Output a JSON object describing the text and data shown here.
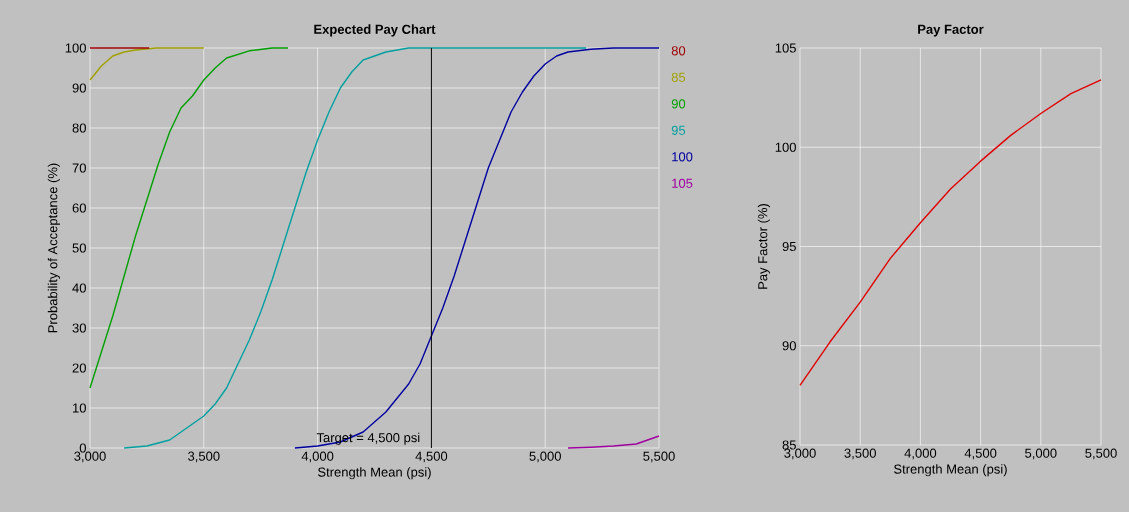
{
  "chart_data": [
    {
      "type": "line",
      "title": "Expected Pay Chart",
      "xlabel": "Strength Mean (psi)",
      "ylabel": "Probability of Acceptance (%)",
      "xlim": [
        3000,
        5500
      ],
      "ylim": [
        0,
        100
      ],
      "xticks": [
        {
          "value": 3000,
          "label": "3,000"
        },
        {
          "value": 3500,
          "label": "3,500"
        },
        {
          "value": 4000,
          "label": "4,000"
        },
        {
          "value": 4500,
          "label": "4,500"
        },
        {
          "value": 5000,
          "label": "5,000"
        },
        {
          "value": 5500,
          "label": "5,500"
        }
      ],
      "yticks": [
        0,
        10,
        20,
        30,
        40,
        50,
        60,
        70,
        80,
        90,
        100
      ],
      "grid": true,
      "legend": "right",
      "ref_lines": [
        {
          "axis": "x",
          "value": 4500,
          "label": "Target = 4,500 psi",
          "color": "#000000"
        }
      ],
      "series": [
        {
          "name": "80",
          "color": "#a00000",
          "x": [
            3000,
            3130,
            3260
          ],
          "values": [
            100,
            100,
            100
          ]
        },
        {
          "name": "85",
          "color": "#a0a000",
          "x": [
            3000,
            3050,
            3100,
            3150,
            3200,
            3290,
            3400,
            3500
          ],
          "values": [
            92,
            95.5,
            98,
            99,
            99.5,
            100,
            100,
            100
          ]
        },
        {
          "name": "90",
          "color": "#00a000",
          "x": [
            3000,
            3050,
            3100,
            3150,
            3200,
            3250,
            3300,
            3350,
            3400,
            3450,
            3500,
            3550,
            3600,
            3700,
            3800,
            3870
          ],
          "values": [
            15,
            24,
            33,
            43,
            53,
            62,
            71,
            79,
            85,
            88,
            92,
            95,
            97.5,
            99.3,
            100,
            100
          ]
        },
        {
          "name": "95",
          "color": "#00a0a0",
          "x": [
            3150,
            3250,
            3350,
            3450,
            3500,
            3550,
            3600,
            3650,
            3700,
            3750,
            3800,
            3850,
            3900,
            3950,
            4000,
            4050,
            4100,
            4150,
            4200,
            4300,
            4400,
            5180
          ],
          "values": [
            0,
            0.5,
            2,
            6,
            8,
            11,
            15,
            21,
            27,
            34,
            42,
            51,
            60,
            69,
            77,
            84,
            90,
            94,
            97,
            99,
            100,
            100
          ]
        },
        {
          "name": "100",
          "color": "#0000a0",
          "x": [
            3900,
            4000,
            4100,
            4200,
            4300,
            4400,
            4450,
            4500,
            4550,
            4600,
            4650,
            4700,
            4750,
            4800,
            4850,
            4900,
            4950,
            5000,
            5050,
            5100,
            5200,
            5300,
            5500
          ],
          "values": [
            0,
            0.5,
            1.5,
            4,
            9,
            16,
            21,
            28,
            35,
            43,
            52,
            61,
            70,
            77,
            84,
            89,
            93,
            96,
            98,
            99,
            99.7,
            100,
            100
          ]
        },
        {
          "name": "105",
          "color": "#a000a0",
          "x": [
            5100,
            5200,
            5300,
            5400,
            5500
          ],
          "values": [
            0,
            0.2,
            0.5,
            1,
            3
          ]
        }
      ]
    },
    {
      "type": "line",
      "title": "Pay Factor",
      "xlabel": "Strength Mean (psi)",
      "ylabel": "Pay Factor (%)",
      "xlim": [
        3000,
        5500
      ],
      "ylim": [
        85,
        105
      ],
      "xticks": [
        {
          "value": 3000,
          "label": "3,000"
        },
        {
          "value": 3500,
          "label": "3,500"
        },
        {
          "value": 4000,
          "label": "4,000"
        },
        {
          "value": 4500,
          "label": "4,500"
        },
        {
          "value": 5000,
          "label": "5,000"
        },
        {
          "value": 5500,
          "label": "5,500"
        }
      ],
      "yticks": [
        85,
        90,
        95,
        100,
        105
      ],
      "grid": true,
      "series": [
        {
          "color": "#e00000",
          "x": [
            3000,
            3250,
            3500,
            3750,
            4000,
            4250,
            4500,
            4750,
            5000,
            5250,
            5500
          ],
          "values": [
            88,
            90.2,
            92.2,
            94.4,
            96.2,
            97.9,
            99.3,
            100.6,
            101.7,
            102.7,
            103.4
          ]
        }
      ]
    }
  ]
}
